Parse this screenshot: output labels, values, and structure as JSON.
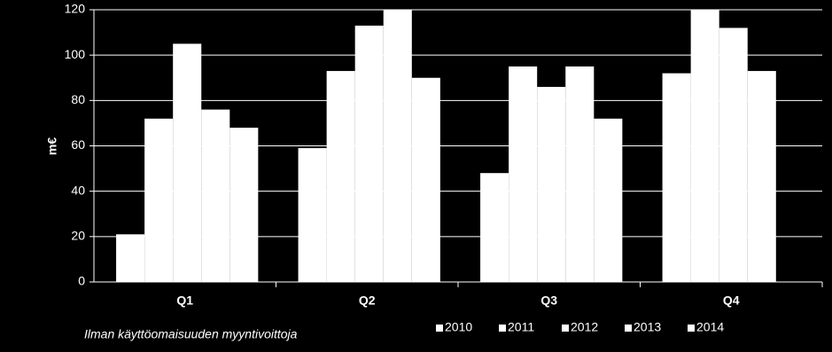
{
  "chart_data": {
    "type": "bar",
    "y_label": "m€",
    "note": "Ilman käyttöomaisuuden myyntivoittoja",
    "categories": [
      "Q1",
      "Q2",
      "Q3",
      "Q4"
    ],
    "series": [
      {
        "name": "2010",
        "color": "#ffffff",
        "values": [
          21,
          59,
          48,
          92
        ]
      },
      {
        "name": "2011",
        "color": "#ffffff",
        "values": [
          72,
          93,
          95,
          120
        ]
      },
      {
        "name": "2012",
        "color": "#ffffff",
        "values": [
          105,
          113,
          86,
          112
        ]
      },
      {
        "name": "2013",
        "color": "#ffffff",
        "values": [
          76,
          120,
          95,
          93
        ]
      },
      {
        "name": "2014",
        "color": "#ffffff",
        "values": [
          68,
          90,
          72,
          null
        ]
      }
    ],
    "ylim": [
      0,
      120
    ],
    "yticks": [
      0,
      20,
      40,
      60,
      80,
      100,
      120
    ],
    "grid": true,
    "legend": "bottom"
  }
}
